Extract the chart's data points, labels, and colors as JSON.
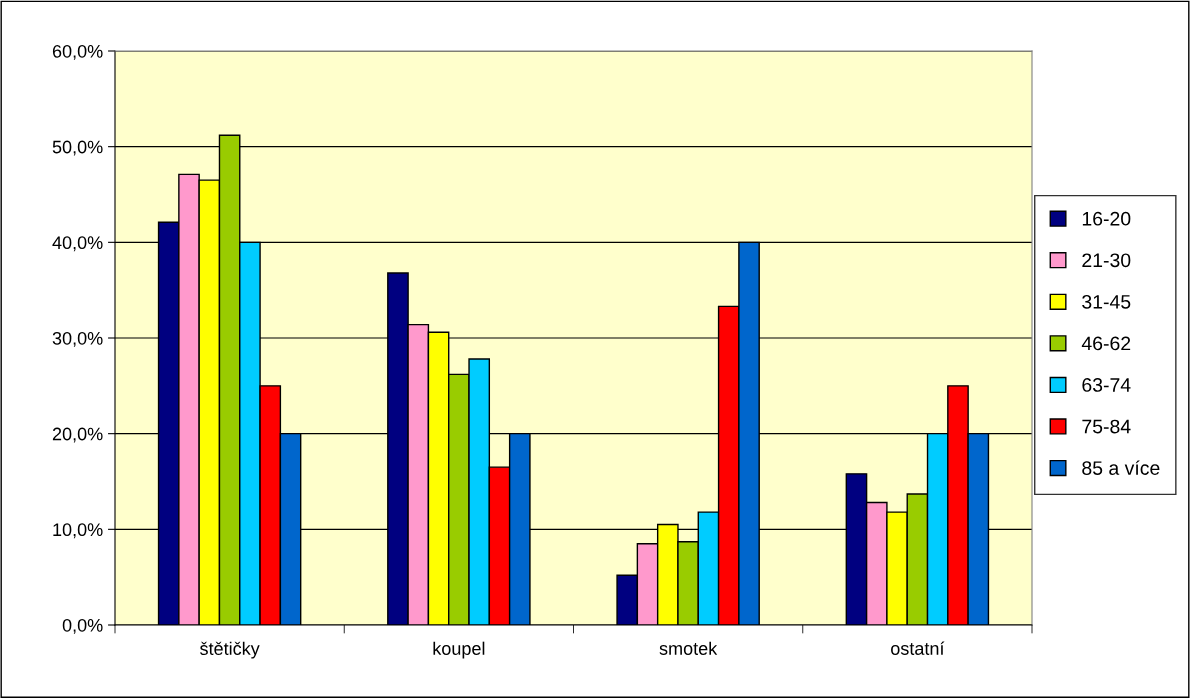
{
  "chart_data": {
    "type": "bar",
    "categories": [
      "štětičky",
      "koupel",
      "smotek",
      "ostatní"
    ],
    "series": [
      {
        "name": "16-20",
        "color": "#000080",
        "values": [
          42.1,
          36.8,
          5.2,
          15.8
        ]
      },
      {
        "name": "21-30",
        "color": "#ff99cc",
        "values": [
          47.1,
          31.4,
          8.5,
          12.8
        ]
      },
      {
        "name": "31-45",
        "color": "#ffff00",
        "values": [
          46.5,
          30.6,
          10.5,
          11.8
        ]
      },
      {
        "name": "46-62",
        "color": "#99cc00",
        "values": [
          51.2,
          26.2,
          8.7,
          13.7
        ]
      },
      {
        "name": "63-74",
        "color": "#00ccff",
        "values": [
          40,
          27.8,
          11.8,
          20
        ]
      },
      {
        "name": "75-84",
        "color": "#ff0000",
        "values": [
          25,
          16.5,
          33.3,
          25
        ]
      },
      {
        "name": "85 a více",
        "color": "#0066cc",
        "values": [
          20,
          20,
          40,
          20
        ]
      }
    ],
    "ylim": [
      0,
      60
    ],
    "yticks": [
      {
        "value": 0,
        "label": "0,0%"
      },
      {
        "value": 10,
        "label": "10,0%"
      },
      {
        "value": 20,
        "label": "20,0%"
      },
      {
        "value": 30,
        "label": "30,0%"
      },
      {
        "value": 40,
        "label": "40,0%"
      },
      {
        "value": 50,
        "label": "50,0%"
      },
      {
        "value": 60,
        "label": "60,0%"
      }
    ],
    "grid": "y",
    "legend": "right"
  }
}
